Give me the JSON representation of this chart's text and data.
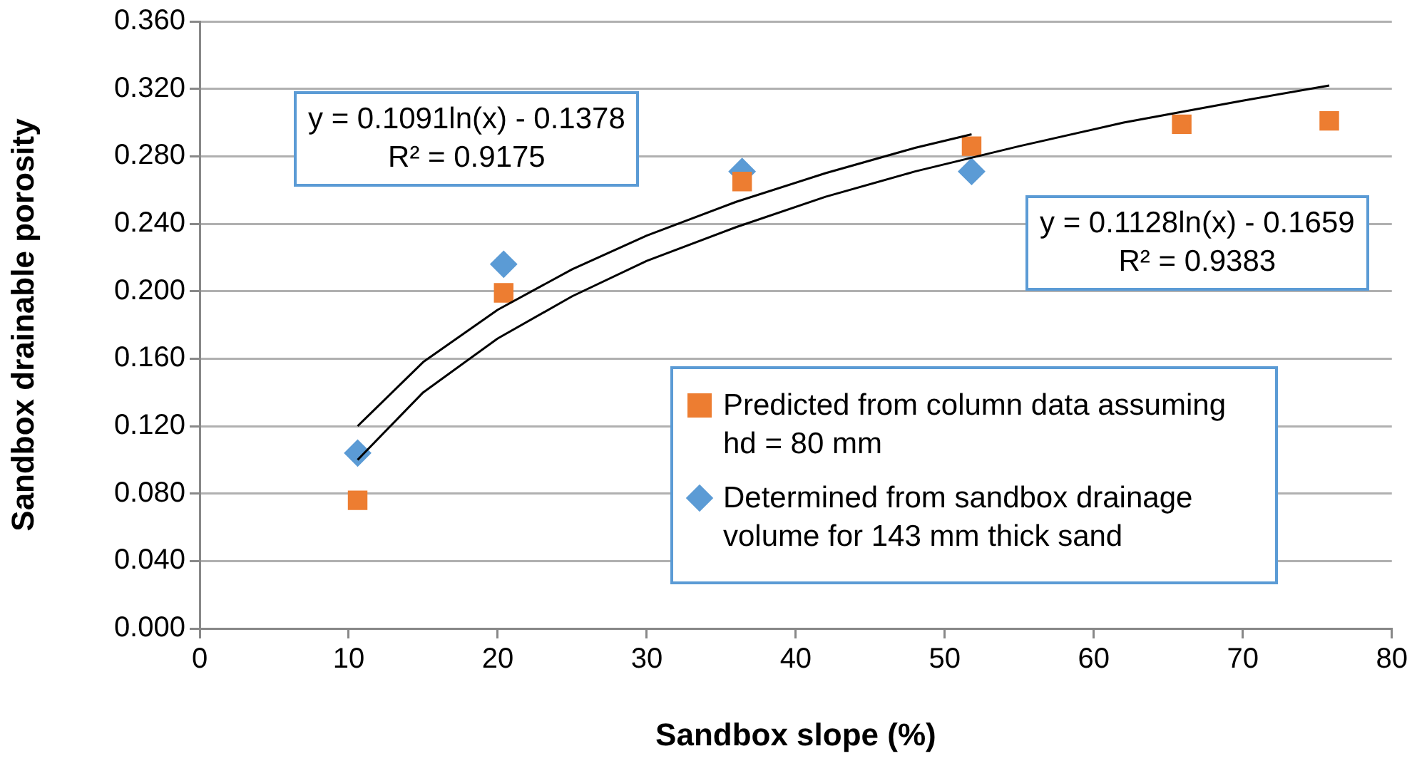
{
  "chart_data": {
    "type": "scatter",
    "xlabel": "Sandbox slope (%)",
    "ylabel": "Sandbox drainable porosity",
    "xlim": [
      0,
      80
    ],
    "xticks": [
      0,
      10,
      20,
      30,
      40,
      50,
      60,
      70,
      80
    ],
    "ylim": [
      0,
      0.36
    ],
    "yticks": [
      {
        "value": 0,
        "label": "0.000"
      },
      {
        "value": 0.04,
        "label": "0.040"
      },
      {
        "value": 0.08,
        "label": "0.080"
      },
      {
        "value": 0.12,
        "label": "0.120"
      },
      {
        "value": 0.16,
        "label": "0.160"
      },
      {
        "value": 0.2,
        "label": "0.200"
      },
      {
        "value": 0.24,
        "label": "0.240"
      },
      {
        "value": 0.28,
        "label": "0.280"
      },
      {
        "value": 0.32,
        "label": "0.320"
      },
      {
        "value": 0.36,
        "label": "0.360"
      }
    ],
    "grid": "y",
    "legend": "bottom right",
    "series": [
      {
        "name": "Predicted from column data assuming hd = 80 mm",
        "color": "#ed7d31",
        "marker": "square",
        "x": [
          10.6,
          20.4,
          36.4,
          51.8,
          65.9,
          75.8
        ],
        "values": [
          0.076,
          0.199,
          0.265,
          0.286,
          0.299,
          0.301
        ]
      },
      {
        "name": "Determined from sandbox drainage volume for 143 mm thick sand",
        "color": "#5b9bd5",
        "marker": "diamond",
        "x": [
          10.6,
          20.4,
          36.4,
          51.8
        ],
        "values": [
          0.104,
          0.216,
          0.271,
          0.271
        ]
      },
      {
        "type": "line",
        "color": "#000000",
        "marker": "none",
        "x": [
          10.6,
          15,
          20,
          25,
          30,
          36,
          42,
          48,
          51.8
        ],
        "values": [
          0.12,
          0.158,
          0.189,
          0.213,
          0.233,
          0.253,
          0.27,
          0.285,
          0.293
        ]
      },
      {
        "type": "line",
        "color": "#000000",
        "marker": "none",
        "x": [
          10.6,
          15,
          20,
          25,
          30,
          36,
          42,
          48,
          55,
          62,
          70,
          75.8
        ],
        "values": [
          0.1,
          0.14,
          0.172,
          0.197,
          0.218,
          0.238,
          0.256,
          0.271,
          0.286,
          0.3,
          0.313,
          0.322
        ]
      }
    ],
    "annotations": [
      "y = 0.1091ln(x) - 0.1378\nR² = 0.9175",
      "y = 0.1128ln(x) - 0.1659\nR² = 0.9383"
    ]
  }
}
